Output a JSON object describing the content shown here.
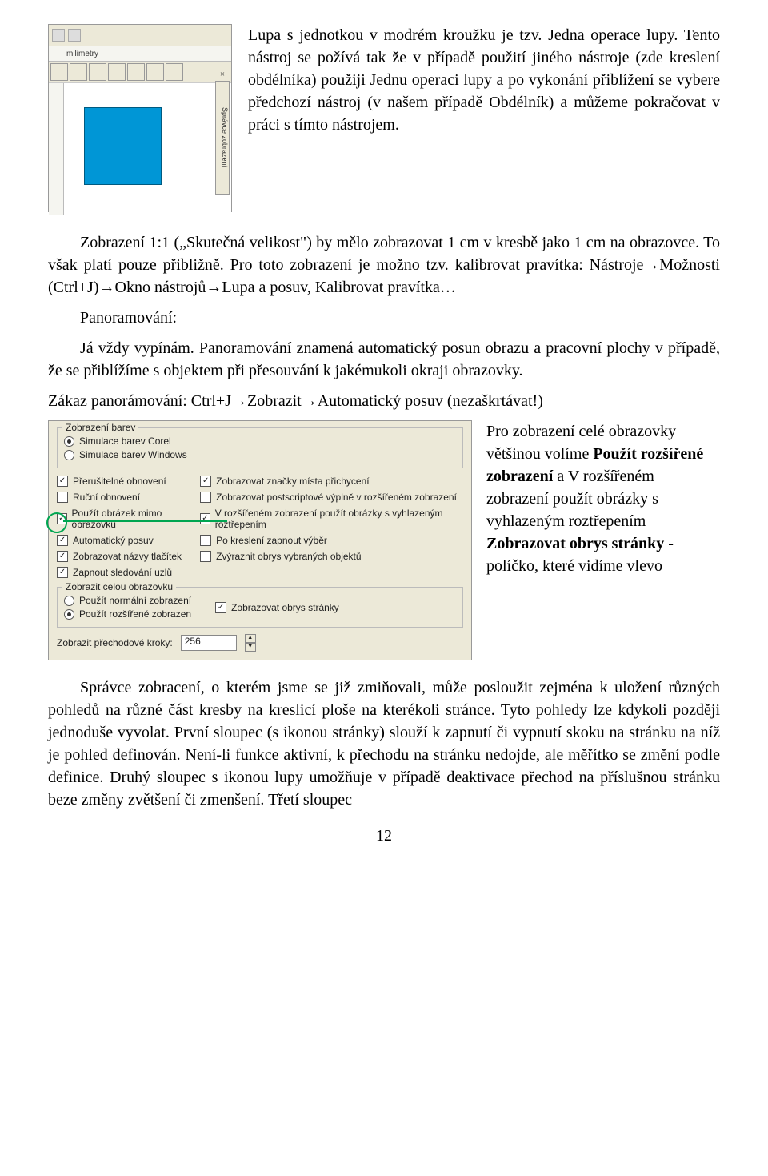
{
  "screenshot1": {
    "ruler_unit": "milimetry",
    "side_label": "Správce zobrazení",
    "close_x": "×",
    "blue_square_color": "#0096d6",
    "bg_color": "#ece9d8"
  },
  "intro": {
    "p1": "Lupa s jednotkou v modrém kroužku je tzv. Jedna operace lupy. Tento nástroj se požívá tak že v případě použití jiného nástroje (zde kreslení obdélníka) použiji Jednu operaci lupy a po vykonání přiblížení se vybere předchozí nástroj (v našem případě Obdélník) a můžeme pokračovat v práci s tímto nástrojem."
  },
  "body": {
    "p2": "Zobrazení 1:1 („Skutečná velikost\") by mělo zobrazovat 1 cm v kresbě jako 1 cm na obrazovce. To však platí pouze přibližně. Pro toto zobrazení je možno tzv. kalibrovat pravítka: Nástroje→Možnosti (Ctrl+J)→Okno nástrojů→Lupa a posuv, Kalibrovat pravítka…",
    "p3_label": "Panoramování:",
    "p3": "Já vždy vypínám. Panoramování znamená automatický posun obrazu a pracovní plochy v případě, že se přiblížíme s objektem při přesouvání k jakémukoli okraji obrazovky.",
    "p4": "Zákaz panorámování: Ctrl+J→Zobrazit→Automatický posuv (nezaškrtávat!)"
  },
  "dialog": {
    "group1_title": "Zobrazení barev",
    "radio1": "Simulace barev Corel",
    "radio2": "Simulace barev Windows",
    "checks_left": [
      {
        "label": "Přerušitelné obnovení",
        "checked": true
      },
      {
        "label": "Ruční obnovení",
        "checked": false
      },
      {
        "label": "Použít obrázek mimo obrazovku",
        "checked": true
      },
      {
        "label": "Automatický posuv",
        "checked": true
      },
      {
        "label": "Zobrazovat názvy tlačítek",
        "checked": true
      },
      {
        "label": "Zapnout sledování uzlů",
        "checked": true
      }
    ],
    "checks_right": [
      {
        "label": "Zobrazovat značky místa přichycení",
        "checked": true
      },
      {
        "label": "Zobrazovat postscriptové výplně v rozšířeném zobrazení",
        "checked": false
      },
      {
        "label": "V rozšířeném zobrazení použít obrázky s vyhlazeným roztřepením",
        "checked": true
      },
      {
        "label": "Po kreslení zapnout výběr",
        "checked": false
      },
      {
        "label": "Zvýraznit obrys vybraných objektů",
        "checked": false
      }
    ],
    "group2_title": "Zobrazit celou obrazovku",
    "radio3": "Použít normální zobrazení",
    "radio4": "Použít rozšířené zobrazen",
    "check_page_outline": "Zobrazovat obrys stránky",
    "steps_label": "Zobrazit přechodové kroky:",
    "steps_value": "256"
  },
  "right": {
    "text": "Pro zobrazení celé obrazovky většinou volíme Použít rozšířené zobrazení a V rozšířeném zobrazení použít obrázky s vyhlazeným roztřepením Zobrazovat obrys stránky - políčko, které vidíme vlevo"
  },
  "bottom": {
    "p5": "Správce zobracení, o kterém jsme se již zmiňovali, může posloužit zejména k uložení různých pohledů na různé část kresby na kreslicí ploše na kterékoli stránce. Tyto pohledy lze kdykoli později jednoduše vyvolat. První sloupec (s ikonou stránky) slouží k zapnutí či vypnutí skoku na stránku na níž je pohled definován. Není-li funkce aktivní, k přechodu na stránku nedojde, ale měřítko se změní podle definice. Druhý sloupec s ikonou lupy umožňuje v případě deaktivace přechod na příslušnou stránku beze změny zvětšení či zmenšení. Třetí sloupec"
  },
  "page_number": "12"
}
